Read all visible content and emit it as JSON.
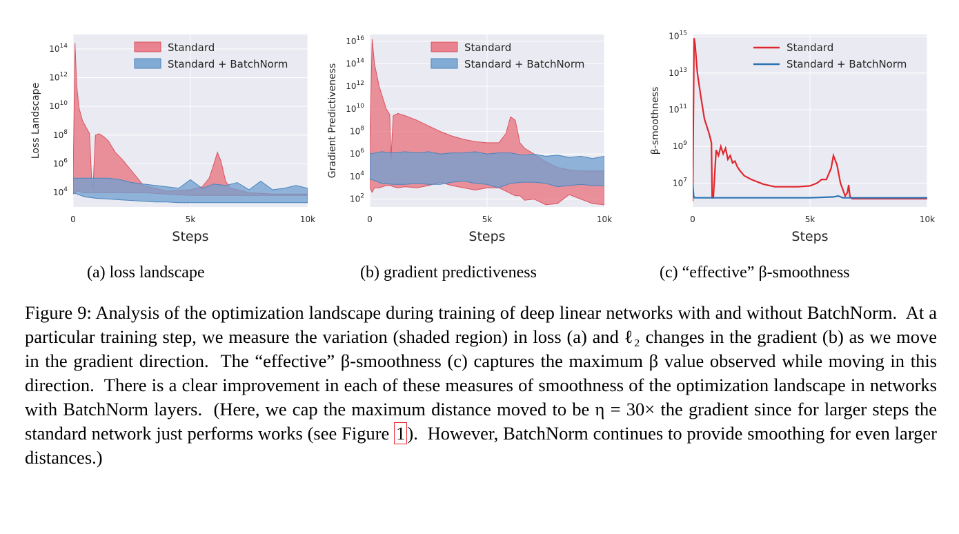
{
  "figures": [
    {
      "chart_data": {
        "type": "area",
        "yscale": "log",
        "ylabel": "Loss Landscape",
        "xlabel": "Steps",
        "xlim": [
          0,
          10000
        ],
        "ylim_exp": [
          3,
          15
        ],
        "xticks": [
          [
            0,
            "0"
          ],
          [
            5000,
            "5k"
          ],
          [
            10000,
            "10k"
          ]
        ],
        "yticks": [
          4,
          6,
          8,
          10,
          12,
          14
        ],
        "legend": "top-right",
        "legend_kind": "patch",
        "series": [
          {
            "name": "Standard",
            "color": "#e8707c",
            "edge": "#d9535f",
            "x": [
              0,
              80,
              150,
              250,
              400,
              700,
              800,
              850,
              950,
              1100,
              1300,
              1500,
              1800,
              2100,
              2400,
              3000,
              4000,
              5000,
              5500,
              5800,
              6000,
              6150,
              6300,
              6500,
              6700,
              7000,
              7500,
              8500,
              9500,
              10000
            ],
            "upper": [
              5.0,
              14.4,
              11.5,
              9.9,
              9.0,
              8.1,
              4.5,
              4.4,
              8.0,
              8.1,
              7.9,
              7.6,
              6.8,
              6.3,
              5.7,
              4.5,
              4.1,
              4.2,
              4.4,
              5.0,
              6.0,
              6.8,
              6.2,
              4.8,
              4.3,
              4.2,
              4.0,
              3.9,
              3.9,
              3.9
            ],
            "lower": [
              3.9,
              4.0,
              4.1,
              4.1,
              4.0,
              4.0,
              4.0,
              4.0,
              4.0,
              4.0,
              4.0,
              4.0,
              4.0,
              4.0,
              4.0,
              4.0,
              3.9,
              3.8,
              3.8,
              3.8,
              3.8,
              3.8,
              3.8,
              3.8,
              3.8,
              3.8,
              3.8,
              3.8,
              3.8,
              3.8
            ]
          },
          {
            "name": "Standard + BatchNorm",
            "color": "#6f9fcf",
            "edge": "#4a84bd",
            "x": [
              0,
              500,
              1000,
              1500,
              2000,
              2500,
              3000,
              3500,
              4000,
              4500,
              5000,
              5500,
              6000,
              6500,
              7000,
              7500,
              8000,
              8500,
              9000,
              9500,
              10000
            ],
            "upper": [
              5.0,
              5.0,
              5.0,
              5.0,
              4.9,
              4.7,
              4.6,
              4.5,
              4.4,
              4.3,
              4.9,
              4.3,
              4.6,
              4.5,
              4.7,
              4.2,
              4.8,
              4.2,
              4.3,
              4.5,
              4.3
            ],
            "lower": [
              4.0,
              3.7,
              3.6,
              3.55,
              3.5,
              3.45,
              3.4,
              3.35,
              3.35,
              3.3,
              3.3,
              3.3,
              3.3,
              3.3,
              3.3,
              3.3,
              3.3,
              3.3,
              3.3,
              3.3,
              3.3
            ]
          }
        ]
      },
      "subcaption": "(a) loss landscape"
    },
    {
      "chart_data": {
        "type": "area",
        "yscale": "log",
        "ylabel": "Gradient Predictiveness",
        "xlabel": "Steps",
        "xlim": [
          0,
          10000
        ],
        "ylim_exp": [
          1.3,
          16.6
        ],
        "xticks": [
          [
            0,
            "0"
          ],
          [
            5000,
            "5k"
          ],
          [
            10000,
            "10k"
          ]
        ],
        "yticks": [
          2,
          4,
          6,
          8,
          10,
          12,
          14,
          16
        ],
        "legend": "top-right",
        "legend_kind": "patch",
        "series": [
          {
            "name": "Standard",
            "color": "#e8707c",
            "edge": "#d9535f",
            "x": [
              0,
              100,
              200,
              400,
              700,
              850,
              900,
              1000,
              1200,
              1500,
              2000,
              2500,
              3000,
              3500,
              4000,
              4500,
              5000,
              5500,
              5800,
              6000,
              6200,
              6400,
              6600,
              7000,
              7500,
              8000,
              8500,
              9000,
              9500,
              10000
            ],
            "upper": [
              7.0,
              16.2,
              14.0,
              12.0,
              10.0,
              9.5,
              5.5,
              9.4,
              9.6,
              9.4,
              9.0,
              8.5,
              8.0,
              7.6,
              7.3,
              7.1,
              7.0,
              7.0,
              7.8,
              9.3,
              9.0,
              7.0,
              6.5,
              6.0,
              5.3,
              4.8,
              4.6,
              4.5,
              4.5,
              4.5
            ],
            "lower": [
              3.0,
              2.6,
              3.0,
              3.0,
              3.2,
              3.2,
              3.2,
              3.1,
              3.0,
              3.1,
              3.0,
              3.2,
              3.5,
              3.2,
              3.0,
              2.8,
              3.0,
              3.0,
              2.7,
              2.5,
              2.3,
              2.3,
              1.9,
              2.0,
              1.5,
              1.6,
              2.4,
              2.0,
              1.6,
              1.5
            ]
          },
          {
            "name": "Standard + BatchNorm",
            "color": "#6f9fcf",
            "edge": "#4a84bd",
            "x": [
              0,
              500,
              1000,
              1500,
              2000,
              2500,
              3000,
              3500,
              4000,
              4500,
              5000,
              5500,
              6000,
              6500,
              7000,
              7500,
              8000,
              8500,
              9000,
              9500,
              10000
            ],
            "upper": [
              6.0,
              6.2,
              6.1,
              6.2,
              6.1,
              6.2,
              6.0,
              6.1,
              6.1,
              6.2,
              6.0,
              6.1,
              6.1,
              5.9,
              6.0,
              5.8,
              5.9,
              5.7,
              5.8,
              5.6,
              5.8
            ],
            "lower": [
              3.8,
              3.4,
              3.3,
              3.3,
              3.4,
              3.3,
              3.3,
              3.5,
              3.6,
              3.4,
              3.3,
              3.0,
              3.4,
              3.5,
              3.5,
              3.4,
              3.1,
              3.2,
              3.3,
              3.2,
              3.2
            ]
          }
        ]
      },
      "subcaption": "(b) gradient predictiveness"
    },
    {
      "chart_data": {
        "type": "line",
        "yscale": "log",
        "ylabel": "β-smoothness",
        "xlabel": "Steps",
        "xlim": [
          0,
          10000
        ],
        "ylim_exp": [
          5.7,
          15.1
        ],
        "xticks": [
          [
            0,
            "0"
          ],
          [
            5000,
            "5k"
          ],
          [
            10000,
            "10k"
          ]
        ],
        "yticks": [
          7,
          9,
          11,
          13,
          15
        ],
        "legend": "top-right",
        "legend_kind": "line",
        "series": [
          {
            "name": "Standard",
            "color": "#e0262d",
            "x": [
              0,
              60,
              100,
              200,
              350,
              500,
              700,
              800,
              830,
              880,
              1000,
              1100,
              1200,
              1300,
              1400,
              1500,
              1600,
              1700,
              1800,
              1900,
              2000,
              2200,
              2500,
              3000,
              3500,
              4000,
              4500,
              5000,
              5300,
              5500,
              5700,
              5900,
              6000,
              6150,
              6300,
              6500,
              6600,
              6650,
              6700,
              6750,
              6800,
              7000,
              8000,
              10000
            ],
            "y": [
              6.0,
              14.9,
              14.6,
              13.0,
              11.7,
              10.5,
              9.7,
              9.2,
              6.2,
              6.2,
              8.8,
              8.5,
              9.0,
              8.6,
              8.9,
              8.3,
              8.5,
              8.1,
              8.2,
              7.9,
              7.7,
              7.4,
              7.2,
              6.95,
              6.8,
              6.8,
              6.8,
              6.85,
              7.0,
              7.2,
              7.2,
              7.8,
              8.5,
              8.0,
              7.0,
              6.3,
              6.5,
              6.9,
              6.3,
              6.2,
              6.15,
              6.15,
              6.15,
              6.15
            ]
          },
          {
            "name": "Standard + BatchNorm",
            "color": "#2c73b4",
            "x": [
              0,
              40,
              80,
              200,
              1000,
              2000,
              3000,
              4000,
              5000,
              6000,
              6200,
              6400,
              7000,
              8000,
              9000,
              10000
            ],
            "y": [
              7.0,
              6.3,
              6.2,
              6.2,
              6.2,
              6.2,
              6.2,
              6.2,
              6.2,
              6.25,
              6.3,
              6.2,
              6.2,
              6.2,
              6.2,
              6.2
            ]
          }
        ]
      },
      "subcaption": "(c) “effective” β-smoothness"
    }
  ],
  "caption": {
    "figure_label": "Figure 9:",
    "part1": "Analysis of the optimization landscape during training of deep linear networks with and without BatchNorm.  At a particular training step, we measure the variation (shaded region) in loss (a) and ℓ₂ changes in the gradient (b) as we move in the gradient direction.  The “effective” β-smoothness (c) captures the maximum β value observed while moving in this direction.  There is a clear improvement in each of these measures of smoothness of the optimization landscape in networks with BatchNorm layers.  (Here, we cap the maximum distance moved to be η = 30× the gradient since for larger steps the standard network just performs works (see Figure ",
    "ref": "1",
    "part2": ").  However, BatchNorm continues to provide smoothing for even larger distances.)"
  }
}
